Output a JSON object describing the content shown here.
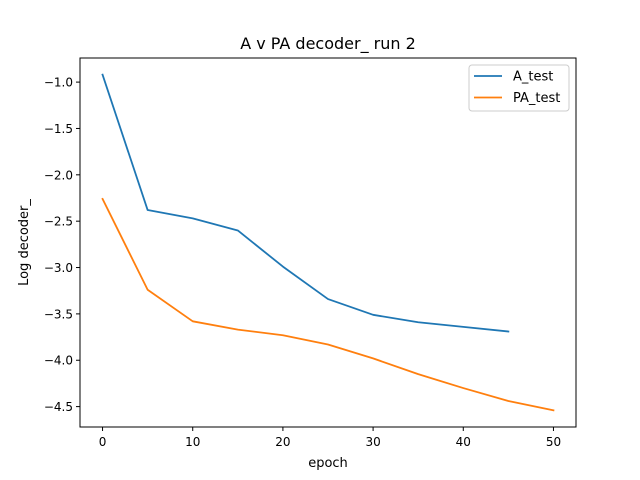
{
  "chart_data": {
    "type": "line",
    "title": "A v PA decoder_ run 2",
    "xlabel": "epoch",
    "ylabel": "Log decoder_",
    "xlim": [
      -2.5,
      52.5
    ],
    "ylim": [
      -4.72,
      -0.74
    ],
    "xticks": [
      0,
      10,
      20,
      30,
      40,
      50
    ],
    "yticks": [
      -1.0,
      -1.5,
      -2.0,
      -2.5,
      -3.0,
      -3.5,
      -4.0,
      -4.5
    ],
    "grid": false,
    "legend_position": "top-right",
    "series": [
      {
        "name": "A_test",
        "color": "#1f77b4",
        "x": [
          0,
          5,
          10,
          15,
          20,
          25,
          30,
          35,
          40,
          45
        ],
        "y": [
          -0.92,
          -2.38,
          -2.47,
          -2.6,
          -2.99,
          -3.34,
          -3.51,
          -3.59,
          -3.64,
          -3.69
        ]
      },
      {
        "name": "PA_test",
        "color": "#ff7f0e",
        "x": [
          0,
          5,
          10,
          15,
          20,
          25,
          30,
          35,
          40,
          45,
          50
        ],
        "y": [
          -2.26,
          -3.24,
          -3.58,
          -3.67,
          -3.73,
          -3.83,
          -3.98,
          -4.15,
          -4.3,
          -4.44,
          -4.54
        ]
      }
    ]
  }
}
